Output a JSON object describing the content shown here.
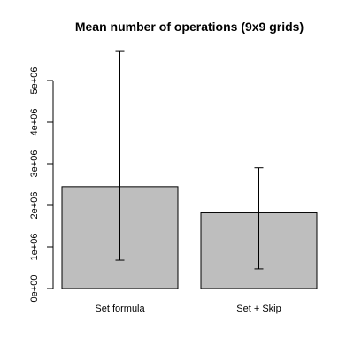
{
  "chart_data": {
    "type": "bar",
    "title": "Mean number of operations (9x9 grids)",
    "xlabel": "",
    "ylabel": "",
    "categories": [
      "Set formula",
      "Set + Skip"
    ],
    "values": [
      2450000,
      1820000
    ],
    "error_bars": {
      "upper": [
        5700000,
        2900000
      ],
      "lower": [
        680000,
        470000
      ]
    },
    "ylim": [
      0,
      5700000
    ],
    "y_ticks": [
      0,
      1000000,
      2000000,
      3000000,
      4000000,
      5000000
    ],
    "y_tick_labels": [
      "0e+00",
      "1e+06",
      "2e+06",
      "3e+06",
      "4e+06",
      "5e+06"
    ],
    "grid": false,
    "bar_color": "#bebebe",
    "line_color": "#000000"
  }
}
